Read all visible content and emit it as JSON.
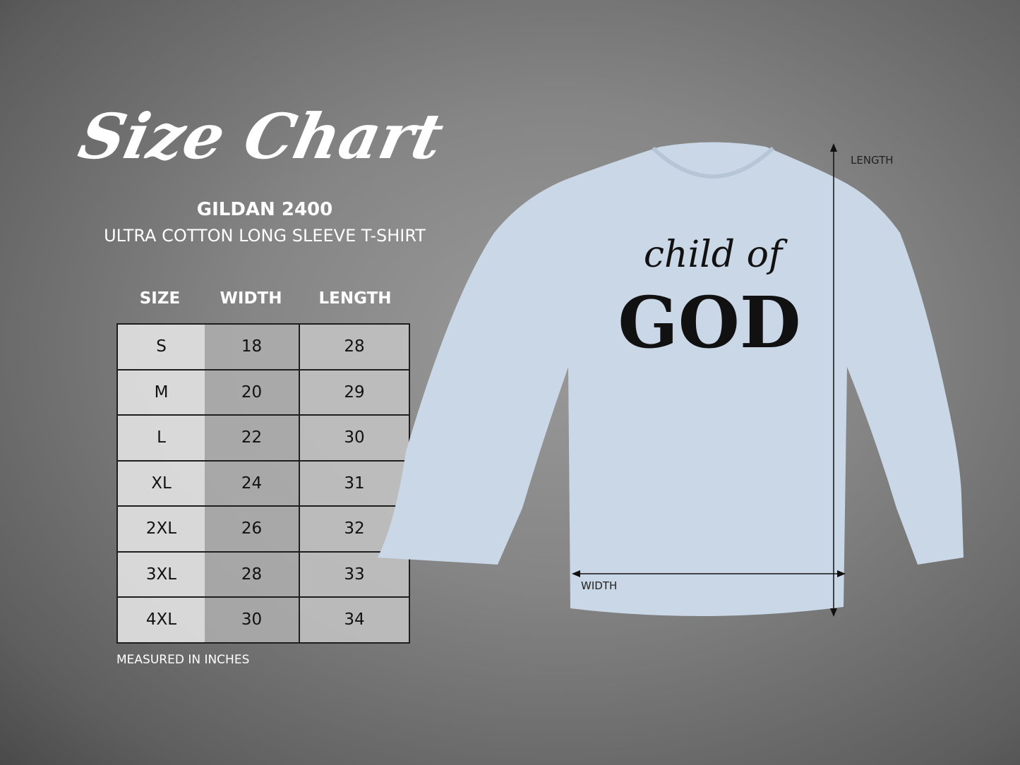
{
  "title": "Size Chart",
  "product": {
    "model": "GILDAN 2400",
    "description": "ULTRA COTTON LONG SLEEVE T-SHIRT"
  },
  "table": {
    "headers": [
      "SIZE",
      "WIDTH",
      "LENGTH"
    ],
    "rows": [
      [
        "S",
        "18",
        "28"
      ],
      [
        "M",
        "20",
        "29"
      ],
      [
        "L",
        "22",
        "30"
      ],
      [
        "XL",
        "24",
        "31"
      ],
      [
        "2XL",
        "26",
        "32"
      ],
      [
        "3XL",
        "28",
        "33"
      ],
      [
        "4XL",
        "30",
        "34"
      ]
    ]
  },
  "note": "MEASURED IN INCHES",
  "shirt": {
    "color": "#c9d7e6",
    "print_script": "child of",
    "print_main": "GOD"
  },
  "measure_labels": {
    "length": "LENGTH",
    "width": "WIDTH"
  }
}
